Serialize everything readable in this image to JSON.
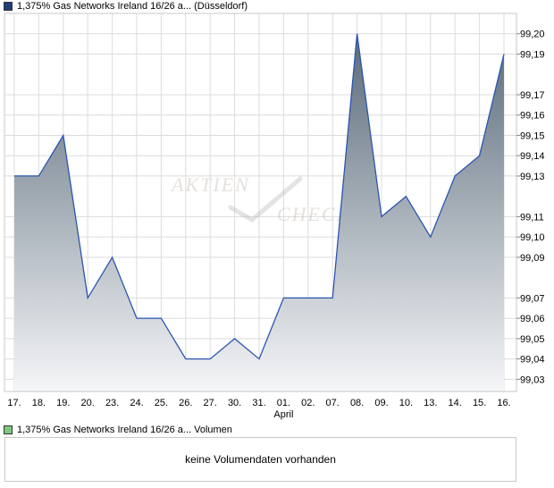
{
  "main_legend": {
    "label": "1,375% Gas Networks Ireland 16/26 a... (Düsseldorf)",
    "swatch_color": "#1f3f7a"
  },
  "volume_legend": {
    "label": "1,375% Gas Networks Ireland 16/26 a... Volumen",
    "swatch_color": "#7fc97f"
  },
  "volume_message": "keine Volumendaten vorhanden",
  "watermark": {
    "line1": "AKTIEN",
    "line2": "CHECK"
  },
  "colors": {
    "line": "#2a55b0",
    "fill_top": "#5a6b7a",
    "fill_bottom": "#f5f6f8",
    "grid": "#dcdcdc"
  },
  "chart_data": {
    "type": "area",
    "x": [
      "17.",
      "18.",
      "19.",
      "20.",
      "23.",
      "24.",
      "25.",
      "26.",
      "27.",
      "30.",
      "31.",
      "01.",
      "02.",
      "07.",
      "08.",
      "09.",
      "10.",
      "13.",
      "14.",
      "15.",
      "16."
    ],
    "values": [
      99.13,
      99.13,
      99.15,
      99.07,
      99.09,
      99.06,
      99.06,
      99.04,
      99.04,
      99.05,
      99.04,
      99.07,
      99.07,
      99.07,
      99.2,
      99.11,
      99.12,
      99.1,
      99.13,
      99.14,
      99.19
    ],
    "month_label": {
      "text": "April",
      "at": "01."
    },
    "y_ticks": [
      "99,03",
      "99,04",
      "99,05",
      "99,06",
      "99,07",
      "99,09",
      "99,10",
      "99,11",
      "99,13",
      "99,14",
      "99,15",
      "99,16",
      "99,17",
      "99,19",
      "99,20"
    ],
    "y_tick_values": [
      99.03,
      99.04,
      99.05,
      99.06,
      99.07,
      99.09,
      99.1,
      99.11,
      99.13,
      99.14,
      99.15,
      99.16,
      99.17,
      99.19,
      99.2
    ],
    "ylim": [
      99.024,
      99.21
    ],
    "grid": true,
    "y_axis_position": "right"
  }
}
